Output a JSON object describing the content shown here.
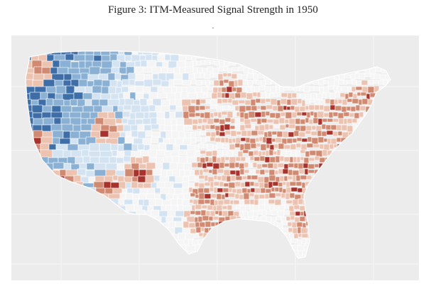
{
  "figure": {
    "title": "Figure 3: ITM-Measured Signal Strength in 1950",
    "subtitle": "-"
  },
  "map": {
    "type": "choropleth",
    "region": "contiguous-united-states",
    "unit": "county",
    "colors": {
      "panel_background": "#ececec",
      "gridline": "#f7f7f7",
      "county_border": "#ffffff",
      "strong_blue": "#3e6ea7",
      "mid_blue": "#8ab1d4",
      "light_blue": "#d4e3f1",
      "neutral": "#f5f5f5",
      "light_red": "#ecc3b0",
      "mid_red": "#d08a72",
      "strong_red": "#a8322c"
    },
    "legend": "none"
  }
}
